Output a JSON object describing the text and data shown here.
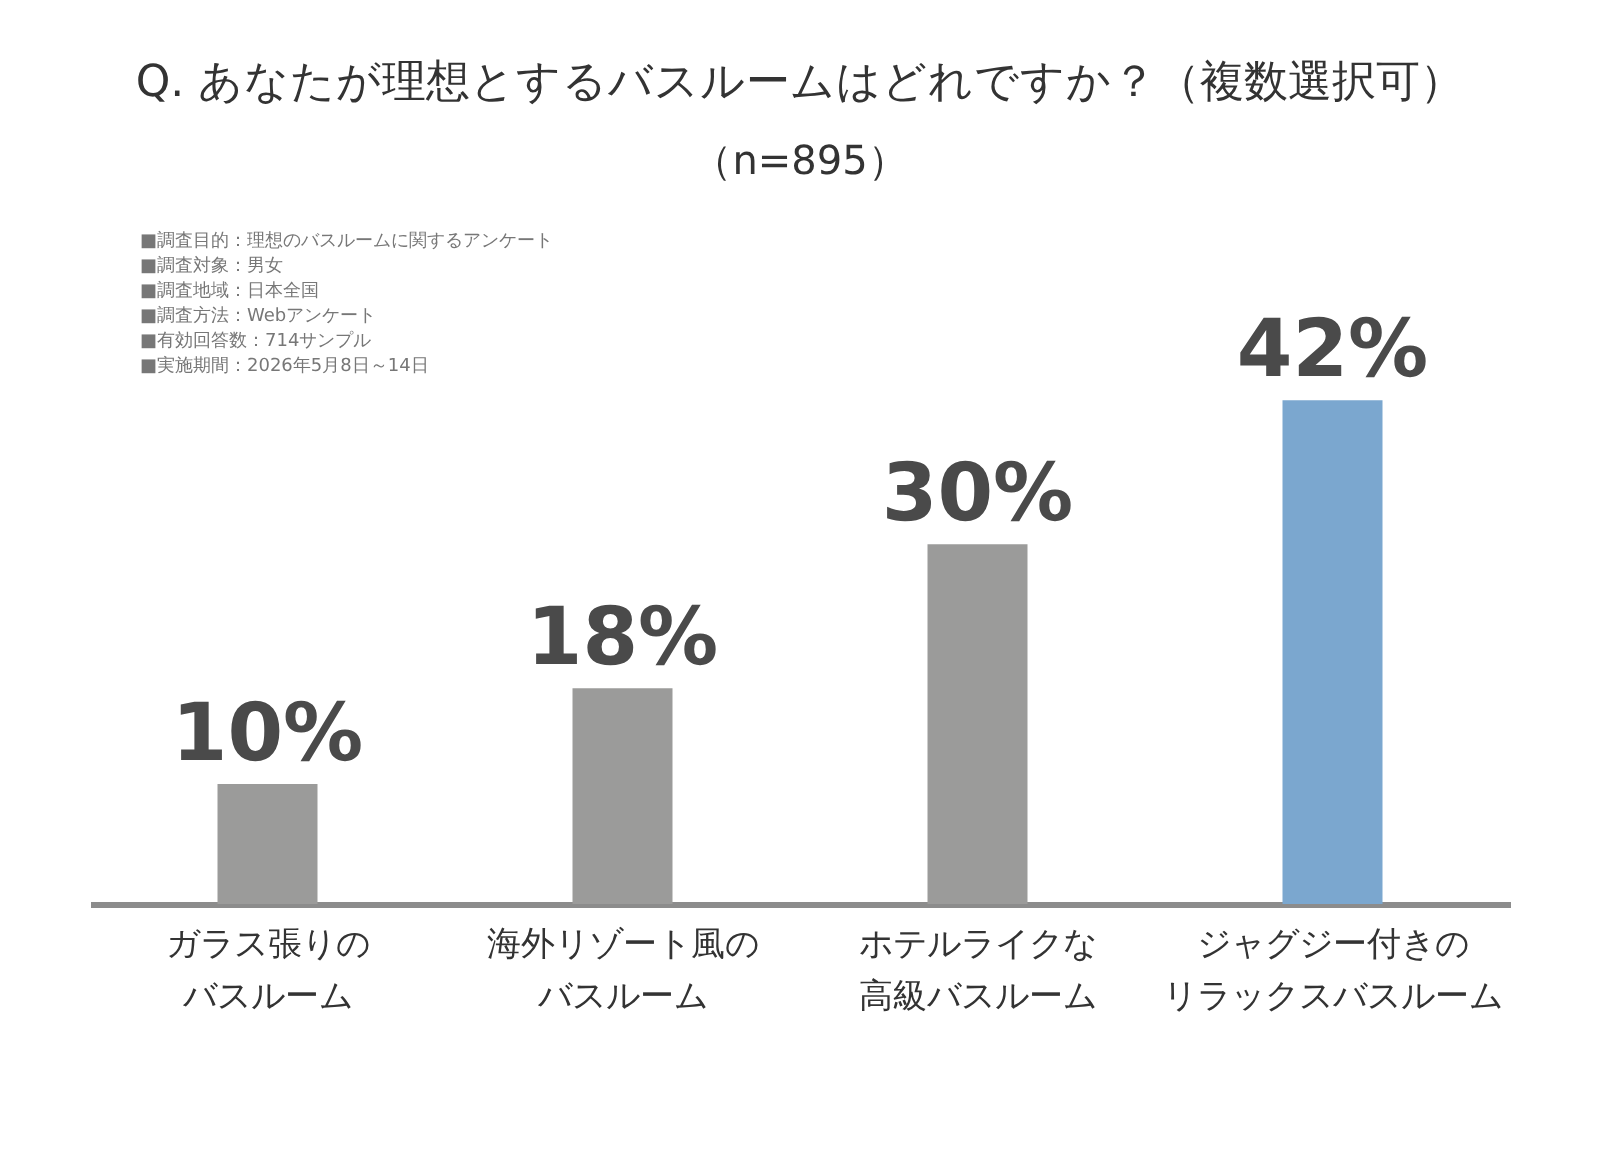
{
  "chart_data": {
    "type": "bar",
    "title": "Q. あなたが理想とするバスルームはどれですか？（複数選択可）",
    "subtitle": "（n=895）",
    "categories": [
      "ガラス張りのバスルーム",
      "海外リゾート風のバスルーム",
      "ホテルライクな高級バスルーム",
      "ジャグジー付きのリラックスバスルーム"
    ],
    "values": [
      10,
      18,
      30,
      42
    ],
    "colors": [
      "#9b9b9a",
      "#9b9b9a",
      "#9b9b9a",
      "#7ba7cf"
    ],
    "data_labels": true,
    "value_labels": [
      "10%",
      "18%",
      "30%",
      "42%"
    ],
    "annotations": [
      "■調査目的：理想のバスルームに関するアンケート",
      "■調査対象：男女",
      "■調査地域：日本全国",
      "■調査方法：Webアンケート",
      "■有効回答数：714サンプル",
      "■実施期間：2026年5月8日～14日"
    ]
  }
}
